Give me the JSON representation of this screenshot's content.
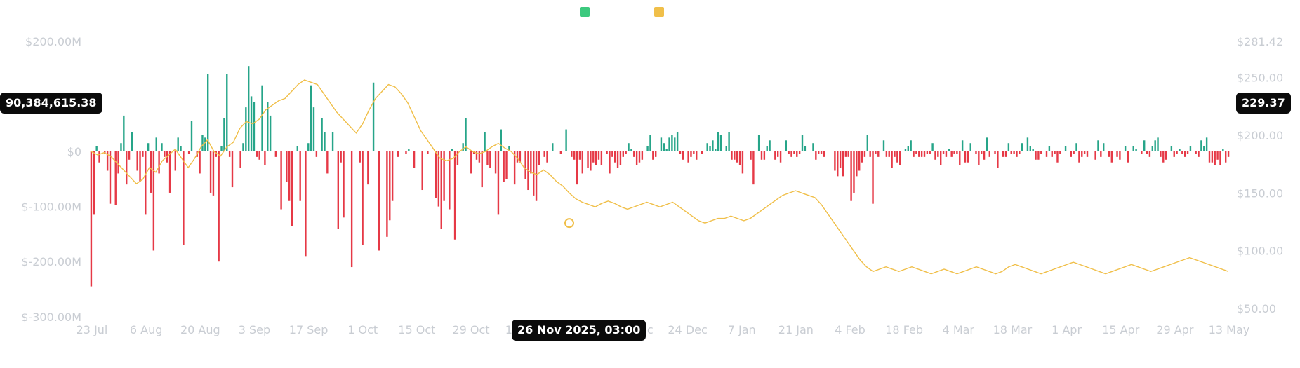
{
  "colors": {
    "inflow": "#26a589",
    "outflow": "#e63946",
    "price": "#f0bf49",
    "legend_inflow": "#3cc97e",
    "legend_price": "#f0bf49",
    "axis_text": "#c9cdd3",
    "tooltip_bg": "#0b0b0b"
  },
  "chart_data": {
    "type": "bar",
    "left_axis": {
      "ticks": [
        "$200.00M",
        "$0",
        "$-100.00M",
        "$-200.00M",
        "$-300.00M"
      ],
      "tick_values": [
        200,
        0,
        -100,
        -200,
        -300
      ],
      "range": [
        -300,
        200
      ],
      "unit": "M"
    },
    "right_axis": {
      "ticks": [
        "$281.42",
        "$250.00",
        "$200.00",
        "$150.00",
        "$100.00",
        "$50.00"
      ],
      "tick_values": [
        281.42,
        250,
        200,
        150,
        100,
        50
      ],
      "range": [
        50,
        281.42
      ]
    },
    "x_ticks": [
      "23 Jul",
      "6 Aug",
      "20 Aug",
      "3 Sep",
      "17 Sep",
      "1 Oct",
      "15 Oct",
      "29 Oct",
      "12 Nov",
      "26 Nov",
      "10 Dec",
      "24 Dec",
      "7 Jan",
      "21 Jan",
      "4 Feb",
      "18 Feb",
      "4 Mar",
      "18 Mar",
      "1 Apr",
      "15 Apr",
      "29 Apr",
      "13 May"
    ],
    "series": [
      {
        "kind": "bar",
        "values": [
          -245,
          -115,
          10,
          -20,
          0,
          -5,
          -35,
          -95,
          0,
          -97,
          -40,
          15,
          65,
          -60,
          -15,
          35,
          0,
          -35,
          -55,
          -10,
          -115,
          15,
          -75,
          -180,
          25,
          -40,
          15,
          -10,
          -20,
          -75,
          0,
          -35,
          25,
          10,
          -170,
          0,
          -5,
          55,
          0,
          -10,
          -40,
          30,
          25,
          140,
          -75,
          -80,
          -10,
          -200,
          10,
          60,
          140,
          -10,
          -65,
          0,
          0,
          -30,
          15,
          80,
          155,
          100,
          90,
          -10,
          -15,
          120,
          -25,
          90,
          65,
          0,
          -10,
          0,
          -105,
          0,
          -55,
          -90,
          -135,
          0,
          10,
          -90,
          0,
          -190,
          15,
          120,
          80,
          -10,
          0,
          60,
          35,
          -40,
          0,
          35,
          0,
          -140,
          -20,
          -120,
          0,
          0,
          -210,
          0,
          0,
          -20,
          -170,
          0,
          -60,
          0,
          125,
          0,
          -180,
          0,
          0,
          -155,
          -125,
          -90,
          0,
          -10,
          0,
          0,
          -5,
          5,
          0,
          -30,
          0,
          0,
          -70,
          0,
          -5,
          0,
          0,
          -85,
          -100,
          -140,
          -90,
          0,
          -105,
          5,
          -160,
          -25,
          0,
          15,
          60,
          0,
          -40,
          -5,
          -15,
          -20,
          -65,
          35,
          -25,
          -30,
          0,
          -40,
          -115,
          40,
          -55,
          -50,
          10,
          0,
          -60,
          -20,
          -20,
          0,
          -50,
          -70,
          -40,
          -80,
          -90,
          -25,
          0,
          -10,
          -20,
          0,
          15,
          0,
          0,
          -5,
          0,
          40,
          0,
          -10,
          -15,
          -60,
          -15,
          -40,
          0,
          -30,
          -35,
          -20,
          -25,
          -15,
          -25,
          0,
          -5,
          -40,
          -10,
          -20,
          -30,
          -25,
          -10,
          -5,
          15,
          5,
          -10,
          -25,
          -20,
          -15,
          0,
          10,
          30,
          -15,
          -10,
          0,
          25,
          15,
          5,
          25,
          30,
          25,
          35,
          -5,
          -15,
          0,
          -20,
          -10,
          -5,
          -15,
          0,
          -5,
          0,
          15,
          10,
          20,
          5,
          35,
          30,
          0,
          10,
          35,
          -15,
          -15,
          -20,
          -25,
          -40,
          0,
          0,
          -15,
          -60,
          0,
          30,
          -15,
          -15,
          10,
          20,
          0,
          -15,
          -10,
          -20,
          0,
          20,
          -5,
          -10,
          -5,
          -10,
          -5,
          30,
          10,
          0,
          0,
          15,
          -15,
          -5,
          -5,
          -10,
          0,
          0,
          0,
          -35,
          -45,
          -30,
          -45,
          -10,
          -10,
          -90,
          -75,
          -45,
          -35,
          -20,
          -10,
          30,
          -10,
          -95,
          -5,
          -10,
          0,
          20,
          -10,
          -10,
          -30,
          -10,
          -20,
          -25,
          0,
          5,
          10,
          20,
          -10,
          -5,
          -10,
          -10,
          -10,
          -5,
          -5,
          15,
          -15,
          -10,
          -25,
          -5,
          -10,
          5,
          -10,
          -5,
          -5,
          -25,
          20,
          -20,
          -20,
          15,
          0,
          -5,
          -25,
          -5,
          -15,
          25,
          -10,
          0,
          -5,
          -30,
          0,
          -10,
          -10,
          15,
          -5,
          -5,
          -10,
          -5,
          15,
          0,
          25,
          10,
          5,
          -15,
          -15,
          -5,
          0,
          -10,
          10,
          -10,
          -5,
          -20,
          -5,
          0,
          10,
          0,
          -10,
          -5,
          15,
          -20,
          -10,
          -5,
          -10,
          0,
          0,
          -15,
          20,
          -10,
          15,
          0,
          -10,
          -20,
          0,
          -10,
          -15,
          0,
          10,
          -20,
          0,
          10,
          5,
          0,
          -5,
          20,
          -5,
          -10,
          10,
          20,
          25,
          -10,
          -20,
          -15,
          0,
          10,
          -10,
          -5,
          5,
          -5,
          -10,
          -5,
          10,
          0,
          -5,
          -10,
          20,
          10,
          25,
          -20,
          -20,
          -25,
          -15,
          -25,
          5,
          -20,
          -10
        ]
      },
      {
        "kind": "line",
        "points": [
          [
            0,
            186
          ],
          [
            3,
            183
          ],
          [
            6,
            185
          ],
          [
            9,
            182
          ],
          [
            12,
            176
          ],
          [
            15,
            170
          ],
          [
            18,
            164
          ],
          [
            21,
            158
          ],
          [
            24,
            162
          ],
          [
            27,
            172
          ],
          [
            30,
            168
          ],
          [
            33,
            178
          ],
          [
            36,
            183
          ],
          [
            39,
            188
          ],
          [
            42,
            180
          ],
          [
            45,
            172
          ],
          [
            48,
            180
          ],
          [
            51,
            190
          ],
          [
            54,
            196
          ],
          [
            57,
            186
          ],
          [
            60,
            182
          ],
          [
            63,
            190
          ],
          [
            66,
            194
          ],
          [
            69,
            206
          ],
          [
            72,
            212
          ],
          [
            75,
            210
          ],
          [
            78,
            214
          ],
          [
            81,
            222
          ],
          [
            84,
            226
          ],
          [
            87,
            230
          ],
          [
            90,
            232
          ],
          [
            93,
            238
          ],
          [
            96,
            244
          ],
          [
            99,
            248
          ],
          [
            102,
            246
          ],
          [
            105,
            244
          ],
          [
            108,
            236
          ],
          [
            111,
            228
          ],
          [
            114,
            220
          ],
          [
            117,
            214
          ],
          [
            120,
            208
          ],
          [
            123,
            202
          ],
          [
            126,
            210
          ],
          [
            129,
            222
          ],
          [
            132,
            232
          ],
          [
            135,
            238
          ],
          [
            138,
            244
          ],
          [
            141,
            242
          ],
          [
            144,
            236
          ],
          [
            147,
            228
          ],
          [
            150,
            216
          ],
          [
            153,
            204
          ],
          [
            156,
            196
          ],
          [
            159,
            188
          ],
          [
            162,
            180
          ],
          [
            165,
            178
          ],
          [
            168,
            180
          ],
          [
            171,
            186
          ],
          [
            174,
            190
          ],
          [
            177,
            186
          ],
          [
            180,
            184
          ],
          [
            183,
            186
          ],
          [
            186,
            190
          ],
          [
            189,
            193
          ],
          [
            192,
            189
          ],
          [
            195,
            186
          ],
          [
            198,
            180
          ],
          [
            201,
            172
          ],
          [
            204,
            168
          ],
          [
            207,
            166
          ],
          [
            210,
            170
          ],
          [
            213,
            166
          ],
          [
            216,
            160
          ],
          [
            219,
            156
          ],
          [
            222,
            150
          ],
          [
            225,
            145
          ],
          [
            228,
            142
          ],
          [
            231,
            140
          ],
          [
            234,
            138
          ],
          [
            237,
            141
          ],
          [
            240,
            143
          ],
          [
            243,
            141
          ],
          [
            246,
            138
          ],
          [
            249,
            136
          ],
          [
            252,
            138
          ],
          [
            255,
            140
          ],
          [
            258,
            142
          ],
          [
            261,
            140
          ],
          [
            264,
            138
          ],
          [
            267,
            140
          ],
          [
            270,
            142
          ],
          [
            273,
            138
          ],
          [
            276,
            134
          ],
          [
            279,
            130
          ],
          [
            282,
            126
          ],
          [
            285,
            124
          ],
          [
            288,
            126
          ],
          [
            291,
            128
          ],
          [
            294,
            128
          ],
          [
            297,
            130
          ],
          [
            300,
            128
          ],
          [
            303,
            126
          ],
          [
            306,
            128
          ],
          [
            309,
            132
          ],
          [
            312,
            136
          ],
          [
            315,
            140
          ],
          [
            318,
            144
          ],
          [
            321,
            148
          ],
          [
            324,
            150
          ],
          [
            327,
            152
          ],
          [
            330,
            150
          ],
          [
            333,
            148
          ],
          [
            336,
            146
          ],
          [
            339,
            140
          ],
          [
            342,
            132
          ],
          [
            345,
            124
          ],
          [
            348,
            116
          ],
          [
            351,
            108
          ],
          [
            354,
            100
          ],
          [
            357,
            92
          ],
          [
            360,
            86
          ],
          [
            363,
            82
          ],
          [
            366,
            84
          ],
          [
            369,
            86
          ],
          [
            372,
            84
          ],
          [
            375,
            82
          ],
          [
            378,
            84
          ],
          [
            381,
            86
          ],
          [
            384,
            84
          ],
          [
            387,
            82
          ],
          [
            390,
            80
          ],
          [
            393,
            82
          ],
          [
            396,
            84
          ],
          [
            399,
            82
          ],
          [
            402,
            80
          ],
          [
            405,
            82
          ],
          [
            408,
            84
          ],
          [
            411,
            86
          ],
          [
            414,
            84
          ],
          [
            417,
            82
          ],
          [
            420,
            80
          ],
          [
            423,
            82
          ],
          [
            426,
            86
          ],
          [
            429,
            88
          ],
          [
            432,
            86
          ],
          [
            435,
            84
          ],
          [
            438,
            82
          ],
          [
            441,
            80
          ],
          [
            444,
            82
          ],
          [
            447,
            84
          ],
          [
            450,
            86
          ],
          [
            453,
            88
          ],
          [
            456,
            90
          ],
          [
            459,
            88
          ],
          [
            462,
            86
          ],
          [
            465,
            84
          ],
          [
            468,
            82
          ],
          [
            471,
            80
          ],
          [
            474,
            82
          ],
          [
            477,
            84
          ],
          [
            480,
            86
          ],
          [
            483,
            88
          ],
          [
            486,
            86
          ],
          [
            489,
            84
          ],
          [
            492,
            82
          ],
          [
            495,
            84
          ],
          [
            498,
            86
          ],
          [
            501,
            88
          ],
          [
            504,
            90
          ],
          [
            507,
            92
          ],
          [
            510,
            94
          ],
          [
            513,
            92
          ],
          [
            516,
            90
          ],
          [
            519,
            88
          ],
          [
            522,
            86
          ],
          [
            525,
            84
          ],
          [
            528,
            82
          ]
        ]
      }
    ],
    "tooltip_date": "26 Nov 2025, 03:00",
    "tooltip_left_value": "90,384,615.38",
    "tooltip_right_value": "229.37",
    "hover_point_price": 124
  }
}
